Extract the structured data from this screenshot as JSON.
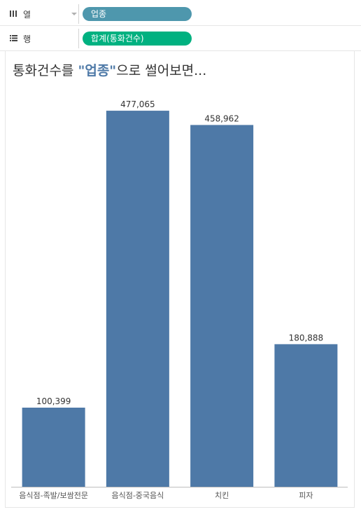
{
  "shelves": {
    "columns": {
      "name": "열",
      "pill": "업종",
      "icon": "columns-icon",
      "color": "#4e97ad"
    },
    "rows": {
      "name": "행",
      "pill": "합계(통화건수)",
      "icon": "rows-icon",
      "color": "#00b180"
    }
  },
  "title": {
    "before": "통화건수를 ",
    "highlight": "\"업종\"",
    "after": "으로 썰어보면..."
  },
  "chart_data": {
    "type": "bar",
    "categories": [
      "음식점-족발/보쌈전문",
      "음식점-중국음식",
      "치킨",
      "피자"
    ],
    "values": [
      100399,
      477065,
      458962,
      180888
    ],
    "value_labels": [
      "100,399",
      "477,065",
      "458,962",
      "180,888"
    ],
    "bar_color": "#4e79a7",
    "ylim": [
      0,
      510000
    ],
    "grid": false,
    "legend": "none"
  }
}
